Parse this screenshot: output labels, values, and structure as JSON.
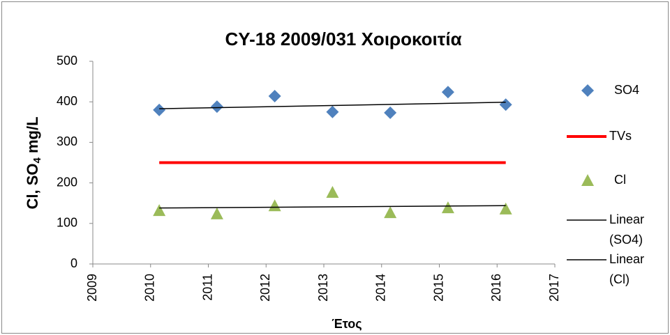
{
  "chart_data": {
    "type": "scatter",
    "title": "CY-18 2009/031 Χοιροκοιτία",
    "y_label": [
      "Cl, SO",
      "4",
      " mg/L"
    ],
    "x_label": "Έτος",
    "xlim": [
      2009,
      2017
    ],
    "xticks": [
      2009,
      2010,
      2011,
      2012,
      2013,
      2014,
      2015,
      2016,
      2017
    ],
    "ylim": [
      0,
      500
    ],
    "yticks": [
      0,
      100,
      200,
      300,
      400,
      500
    ],
    "grid": false,
    "legend": "right",
    "series": [
      {
        "name": "SO4",
        "color": "#4f81bd",
        "marker": "diamond",
        "x": [
          2010.15,
          2011.15,
          2012.15,
          2013.15,
          2014.15,
          2015.15,
          2016.15
        ],
        "values": [
          380,
          388,
          414,
          375,
          373,
          424,
          393
        ]
      },
      {
        "name": "TVs",
        "color": "#ff0000",
        "marker": "line",
        "x": [
          2010.15,
          2016.15
        ],
        "values": [
          250,
          250
        ]
      },
      {
        "name": "Cl",
        "color": "#9bbb59",
        "marker": "triangle",
        "x": [
          2010.15,
          2011.15,
          2012.15,
          2013.15,
          2014.15,
          2015.15,
          2016.15
        ],
        "values": [
          132,
          124,
          144,
          177,
          127,
          139,
          136
        ]
      },
      {
        "name": "Linear (SO4)",
        "color": "#000000",
        "marker": "thin-line",
        "x": [
          2010.15,
          2016.15
        ],
        "values": [
          383,
          399
        ]
      },
      {
        "name": "Linear (Cl)",
        "color": "#000000",
        "marker": "thin-line",
        "x": [
          2010.15,
          2016.15
        ],
        "values": [
          138,
          144
        ]
      }
    ]
  }
}
